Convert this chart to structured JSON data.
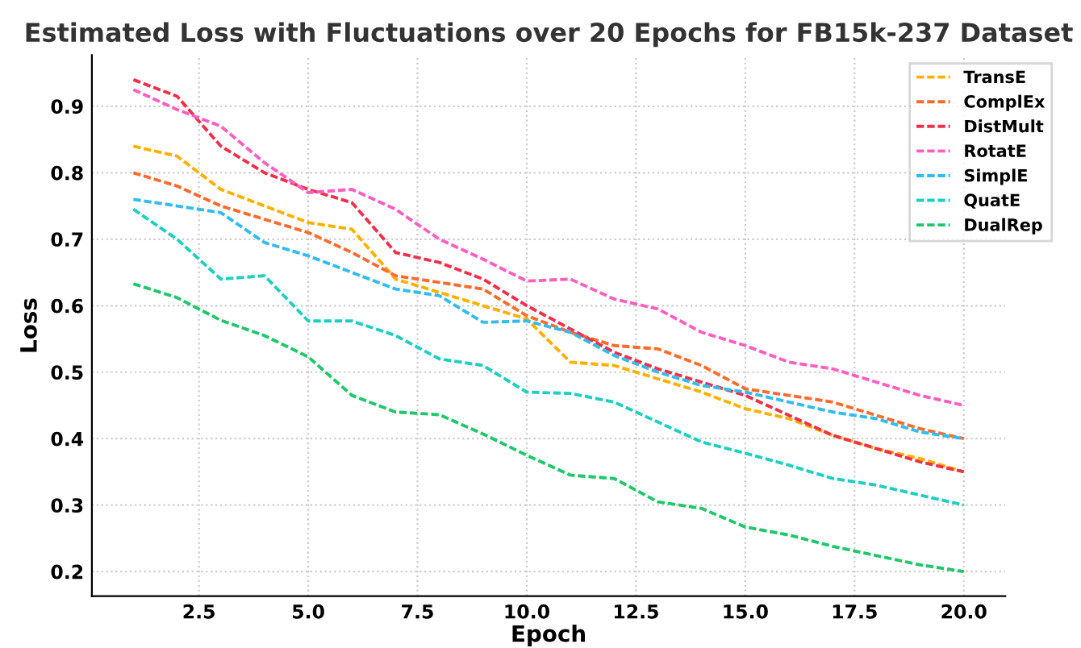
{
  "chart_data": {
    "type": "line",
    "title": "Estimated Loss with Fluctuations over 20 Epochs for FB15k-237 Dataset",
    "xlabel": "Epoch",
    "ylabel": "Loss",
    "x": [
      1,
      2,
      3,
      4,
      5,
      6,
      7,
      8,
      9,
      10,
      11,
      12,
      13,
      14,
      15,
      16,
      17,
      18,
      19,
      20
    ],
    "xlim": [
      0.05,
      20.95
    ],
    "xticks": [
      {
        "value": 2.5,
        "label": "2.5"
      },
      {
        "value": 5,
        "label": "5.0"
      },
      {
        "value": 7.5,
        "label": "7.5"
      },
      {
        "value": 10,
        "label": "10.0"
      },
      {
        "value": 12.5,
        "label": "12.5"
      },
      {
        "value": 15,
        "label": "15.0"
      },
      {
        "value": 17.5,
        "label": "17.5"
      },
      {
        "value": 20,
        "label": "20.0"
      }
    ],
    "ylim": [
      0.163,
      0.977
    ],
    "yticks": [
      0.2,
      0.3,
      0.4,
      0.5,
      0.6,
      0.7,
      0.8,
      0.9
    ],
    "grid": true,
    "legend": "top right",
    "line_style": "dashed",
    "marker": "none",
    "series": [
      {
        "name": "TransE",
        "color": "#ffb000",
        "values": [
          0.84,
          0.825,
          0.775,
          0.75,
          0.725,
          0.715,
          0.64,
          0.62,
          0.6,
          0.58,
          0.515,
          0.51,
          0.49,
          0.47,
          0.445,
          0.43,
          0.405,
          0.385,
          0.37,
          0.35
        ]
      },
      {
        "name": "ComplEx",
        "color": "#fd6c2e",
        "values": [
          0.8,
          0.78,
          0.75,
          0.73,
          0.71,
          0.68,
          0.645,
          0.635,
          0.625,
          0.585,
          0.56,
          0.54,
          0.535,
          0.51,
          0.475,
          0.465,
          0.455,
          0.435,
          0.415,
          0.4
        ]
      },
      {
        "name": "DistMult",
        "color": "#f0304a",
        "values": [
          0.94,
          0.915,
          0.84,
          0.8,
          0.775,
          0.755,
          0.68,
          0.665,
          0.64,
          0.6,
          0.565,
          0.53,
          0.505,
          0.485,
          0.465,
          0.435,
          0.405,
          0.385,
          0.365,
          0.35
        ]
      },
      {
        "name": "RotatE",
        "color": "#ff5fc0",
        "values": [
          0.925,
          0.895,
          0.87,
          0.815,
          0.77,
          0.775,
          0.745,
          0.7,
          0.67,
          0.637,
          0.64,
          0.61,
          0.595,
          0.56,
          0.54,
          0.515,
          0.505,
          0.485,
          0.465,
          0.45
        ]
      },
      {
        "name": "SimplE",
        "color": "#33bbee",
        "values": [
          0.76,
          0.75,
          0.74,
          0.695,
          0.675,
          0.65,
          0.625,
          0.615,
          0.575,
          0.577,
          0.56,
          0.525,
          0.5,
          0.48,
          0.47,
          0.455,
          0.44,
          0.43,
          0.41,
          0.4
        ]
      },
      {
        "name": "QuatE",
        "color": "#1ecfc0",
        "values": [
          0.745,
          0.7,
          0.64,
          0.645,
          0.577,
          0.577,
          0.555,
          0.52,
          0.51,
          0.47,
          0.468,
          0.455,
          0.425,
          0.395,
          0.378,
          0.36,
          0.34,
          0.33,
          0.315,
          0.3
        ]
      },
      {
        "name": "DualRep",
        "color": "#1ec86a",
        "values": [
          0.633,
          0.612,
          0.578,
          0.555,
          0.523,
          0.465,
          0.44,
          0.436,
          0.407,
          0.375,
          0.345,
          0.34,
          0.305,
          0.295,
          0.267,
          0.255,
          0.238,
          0.224,
          0.21,
          0.2
        ]
      }
    ]
  }
}
